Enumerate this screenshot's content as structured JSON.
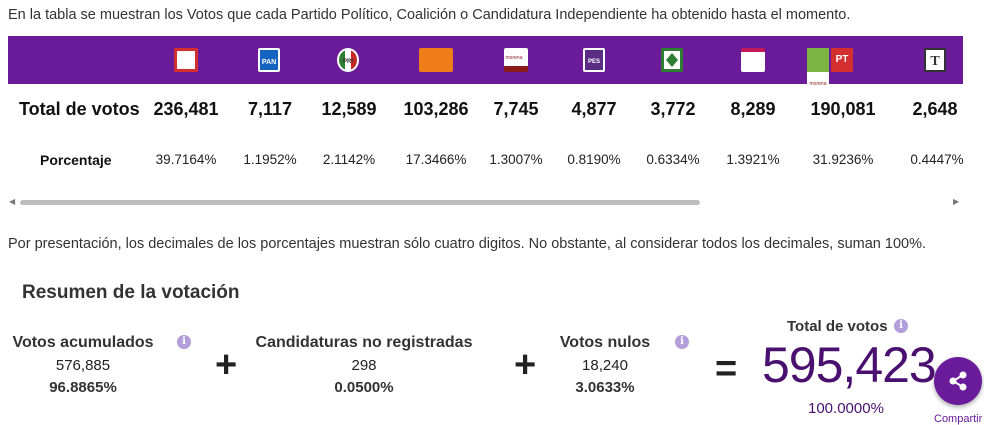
{
  "intro": "En la tabla se muestran los Votos que cada Partido Político, Coalición o Candidatura Independiente ha obtenido hasta el momento.",
  "table": {
    "total_label": "Total de votos",
    "pct_label": "Porcentaje",
    "columns": [
      {
        "logo": "red-box-logo",
        "total": "236,481",
        "pct": "39.7164%"
      },
      {
        "logo": "pan-logo",
        "total": "7,117",
        "pct": "1.1952%"
      },
      {
        "logo": "pri-logo",
        "total": "12,589",
        "pct": "2.1142%"
      },
      {
        "logo": "orange-party-logo",
        "total": "103,286",
        "pct": "17.3466%"
      },
      {
        "logo": "morena-logo",
        "total": "7,745",
        "pct": "1.3007%"
      },
      {
        "logo": "pes-logo",
        "total": "4,877",
        "pct": "0.8190%"
      },
      {
        "logo": "green-party-logo",
        "total": "3,772",
        "pct": "0.6334%"
      },
      {
        "logo": "morena-local-logo",
        "total": "8,289",
        "pct": "1.3921%"
      },
      {
        "logo": "coalition-pvem-pt-morena-logo",
        "total": "190,081",
        "pct": "31.9236%"
      },
      {
        "logo": "t-party-logo",
        "total": "2,648",
        "pct": "0.4447%"
      }
    ],
    "logo_texts": {
      "pan": "PAN",
      "pri": "PRI",
      "morena": "morena",
      "pes": "PES",
      "pt": "PT",
      "t": "T"
    }
  },
  "note": "Por presentación, los decimales de los porcentajes muestran sólo cuatro digitos. No obstante, al considerar todos los decimales, suman 100%.",
  "resumen": {
    "title": "Resumen de la votación",
    "acumulados": {
      "label": "Votos acumulados",
      "value": "576,885",
      "pct": "96.8865%"
    },
    "no_registradas": {
      "label": "Candidaturas no registradas",
      "value": "298",
      "pct": "0.0500%"
    },
    "nulos": {
      "label": "Votos nulos",
      "value": "18,240",
      "pct": "3.0633%"
    },
    "total": {
      "label": "Total de votos",
      "value": "595,423",
      "pct": "100.0000%"
    },
    "plus": "+",
    "equals": "="
  },
  "share_label": "Compartir",
  "colors": {
    "brand": "#6a1b9a",
    "total_number": "#4a1070",
    "info": "#b39ddb"
  }
}
